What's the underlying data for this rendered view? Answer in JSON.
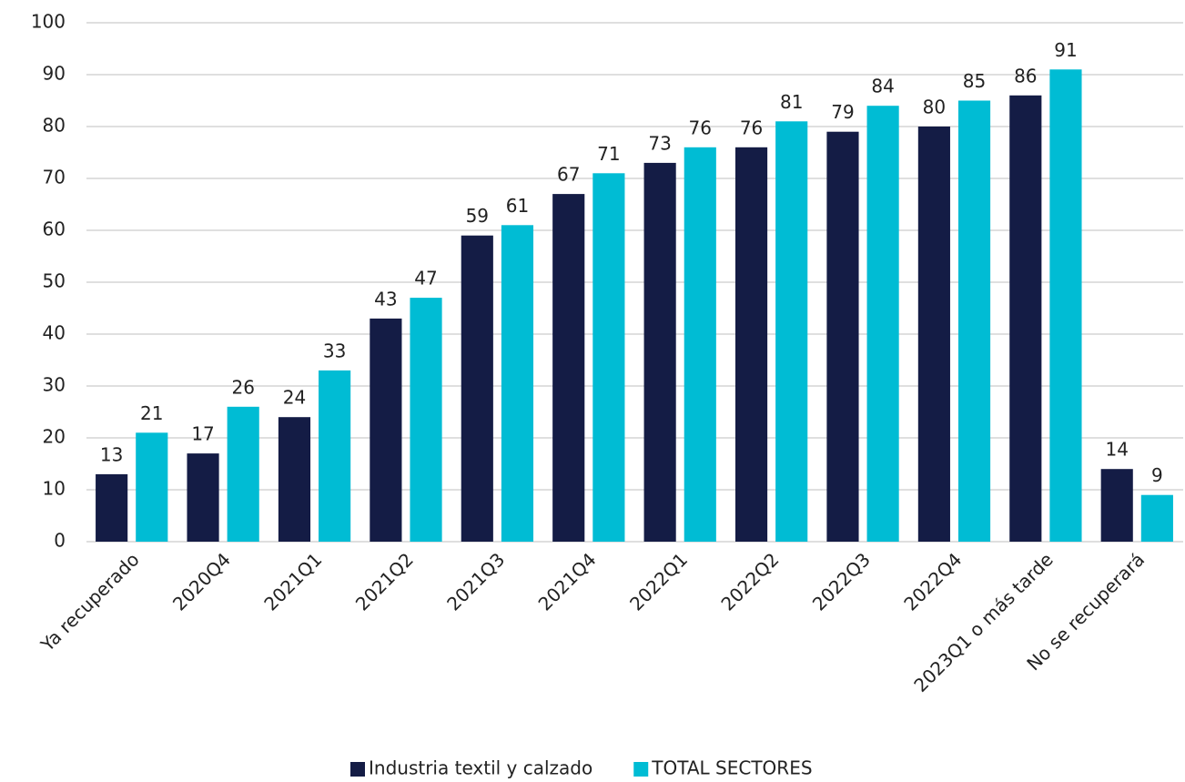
{
  "chart_data": {
    "type": "bar",
    "categories": [
      "Ya recuperado",
      "2020Q4",
      "2021Q1",
      "2021Q2",
      "2021Q3",
      "2021Q4",
      "2022Q1",
      "2022Q2",
      "2022Q3",
      "2022Q4",
      "2023Q1 o más tarde",
      "No se recuperará"
    ],
    "series": [
      {
        "name": "Industria textil y calzado",
        "color": "#141c45",
        "values": [
          13,
          17,
          24,
          43,
          59,
          67,
          73,
          76,
          79,
          80,
          86,
          14
        ]
      },
      {
        "name": "TOTAL SECTORES",
        "color": "#00bcd4",
        "values": [
          21,
          26,
          33,
          47,
          61,
          71,
          76,
          81,
          84,
          85,
          91,
          9
        ]
      }
    ],
    "ylim": [
      0,
      100
    ],
    "yticks": [
      0,
      10,
      20,
      30,
      40,
      50,
      60,
      70,
      80,
      90,
      100
    ],
    "grid": true,
    "legend": "bottom"
  }
}
